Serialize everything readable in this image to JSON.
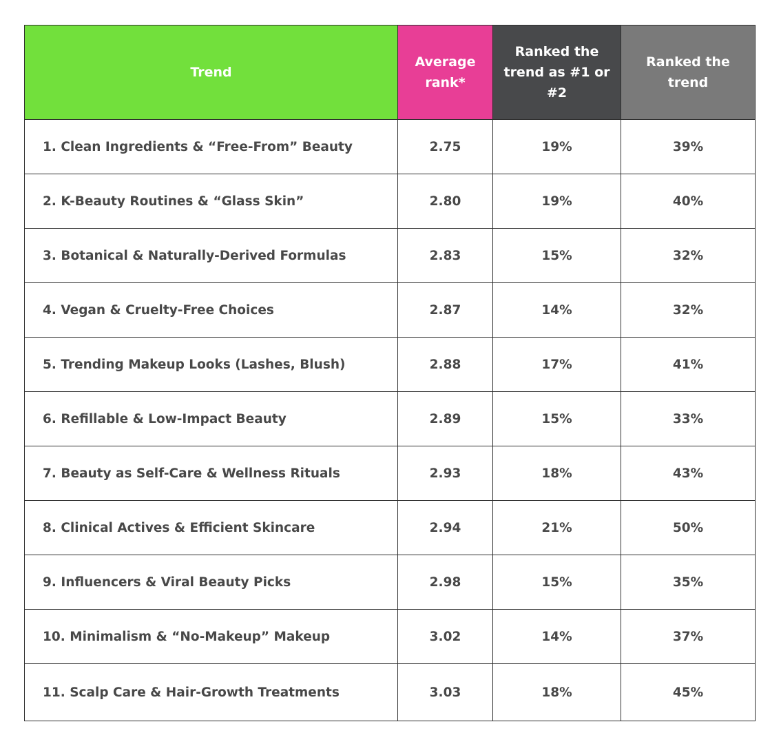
{
  "table": {
    "columns": [
      "Trend",
      "Average rank*",
      "Ranked the trend as #1 or #2",
      "Ranked the trend"
    ],
    "rows": [
      [
        "1. Clean Ingredients & “Free-From” Beauty",
        "2.75",
        "19%",
        "39%"
      ],
      [
        "2. K-Beauty Routines & “Glass Skin”",
        "2.80",
        "19%",
        "40%"
      ],
      [
        "3. Botanical & Naturally-Derived Formulas",
        "2.83",
        "15%",
        "32%"
      ],
      [
        "4. Vegan & Cruelty-Free Choices",
        "2.87",
        "14%",
        "32%"
      ],
      [
        "5. Trending Makeup Looks (Lashes, Blush)",
        "2.88",
        "17%",
        "41%"
      ],
      [
        "6. Refillable & Low-Impact Beauty",
        "2.89",
        "15%",
        "33%"
      ],
      [
        "7. Beauty as Self-Care & Wellness Rituals",
        "2.93",
        "18%",
        "43%"
      ],
      [
        "8. Clinical Actives & Efficient Skincare",
        "2.94",
        "21%",
        "50%"
      ],
      [
        "9. Influencers & Viral Beauty Picks",
        "2.98",
        "15%",
        "35%"
      ],
      [
        "10. Minimalism & “No-Makeup” Makeup",
        "3.02",
        "14%",
        "37%"
      ],
      [
        "11. Scalp Care & Hair-Growth Treatments",
        "3.03",
        "18%",
        "45%"
      ]
    ]
  }
}
